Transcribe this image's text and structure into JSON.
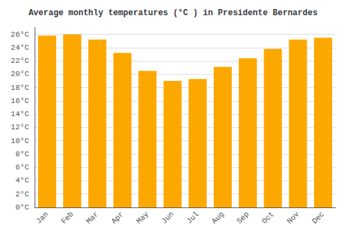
{
  "chart_data": {
    "type": "bar",
    "title": "Average monthly temperatures (°C ) in Presidente Bernardes",
    "categories": [
      "Jan",
      "Feb",
      "Mar",
      "Apr",
      "May",
      "Jun",
      "Jul",
      "Aug",
      "Sep",
      "Oct",
      "Nov",
      "Dec"
    ],
    "values": [
      25.8,
      26.0,
      25.2,
      23.2,
      20.5,
      19.0,
      19.3,
      21.1,
      22.4,
      23.8,
      25.2,
      25.5
    ],
    "color": "#FCA800",
    "ylim": [
      0,
      27
    ],
    "yticks": [
      {
        "value": 0,
        "label": "0°C"
      },
      {
        "value": 2,
        "label": "2°C"
      },
      {
        "value": 4,
        "label": "4°C"
      },
      {
        "value": 6,
        "label": "6°C"
      },
      {
        "value": 8,
        "label": "8°C"
      },
      {
        "value": 10,
        "label": "10°C"
      },
      {
        "value": 12,
        "label": "12°C"
      },
      {
        "value": 14,
        "label": "14°C"
      },
      {
        "value": 16,
        "label": "16°C"
      },
      {
        "value": 18,
        "label": "18°C"
      },
      {
        "value": 20,
        "label": "20°C"
      },
      {
        "value": 22,
        "label": "22°C"
      },
      {
        "value": 24,
        "label": "24°C"
      },
      {
        "value": 26,
        "label": "26°C"
      }
    ],
    "grid": true
  }
}
